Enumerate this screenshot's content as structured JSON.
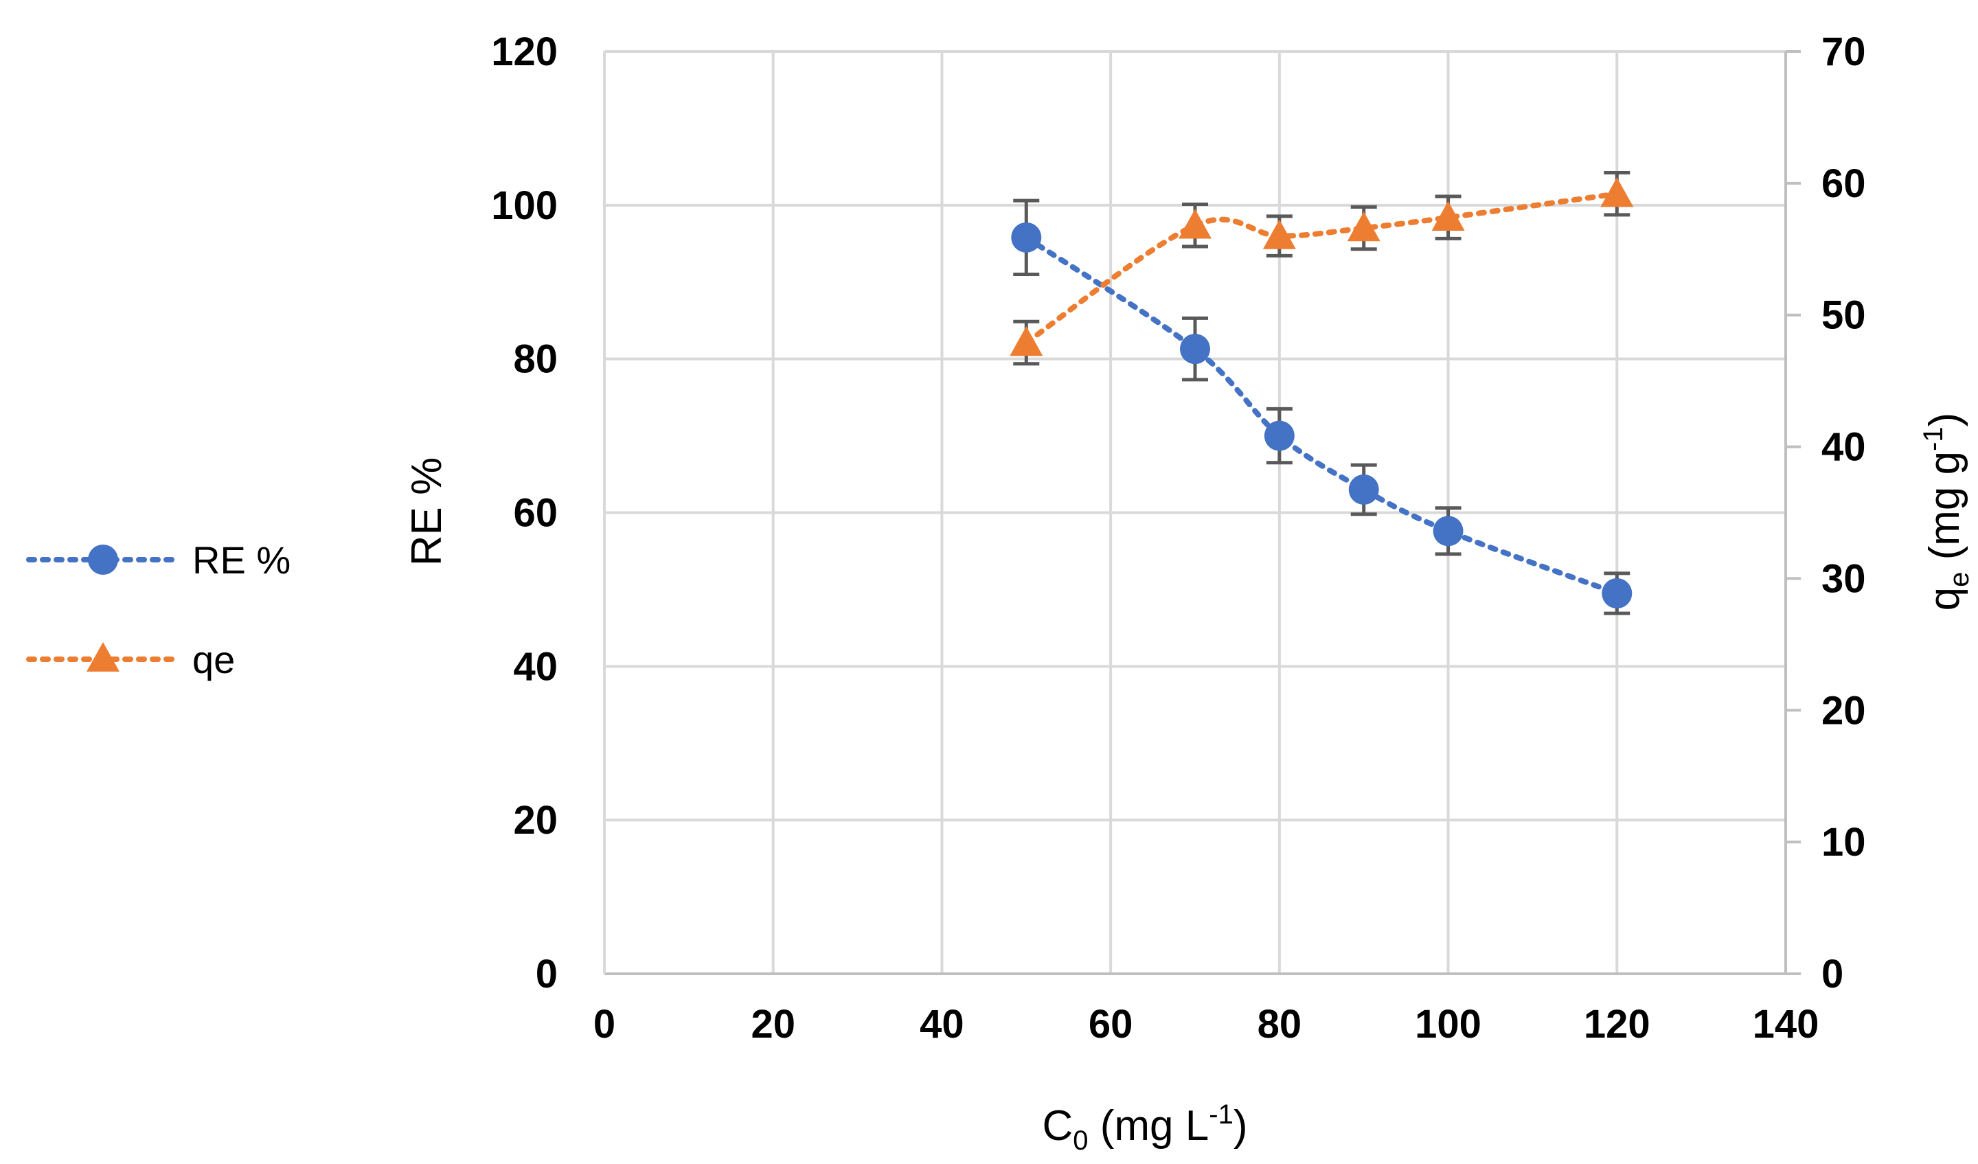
{
  "chart_data": {
    "type": "line",
    "title": "",
    "xlabel": {
      "main": "C",
      "sub": "0",
      "rest": " (mg L",
      "sup": "-1",
      "end": ")"
    },
    "ylabel": "RE %",
    "y2label": {
      "main": "q",
      "sub": "e",
      "rest": " (mg g",
      "sup": "-1",
      "end": ")"
    },
    "xlim": [
      0,
      140
    ],
    "ylim": [
      0,
      120
    ],
    "y2lim": [
      0,
      70
    ],
    "xticks": [
      0,
      20,
      40,
      60,
      80,
      100,
      120,
      140
    ],
    "yticks": [
      0,
      20,
      40,
      60,
      80,
      100,
      120
    ],
    "y2ticks": [
      0,
      10,
      20,
      30,
      40,
      50,
      60,
      70
    ],
    "grid": true,
    "legend_position": "left",
    "series": [
      {
        "name": "RE %",
        "axis": "left",
        "marker": "circle",
        "color": "#4472C4",
        "x": [
          50,
          70,
          80,
          90,
          100,
          120
        ],
        "y": [
          95.8,
          81.3,
          70.0,
          63.0,
          57.6,
          49.5
        ],
        "err": [
          4.8,
          4.0,
          3.5,
          3.2,
          3.0,
          2.6
        ]
      },
      {
        "name": "qe",
        "axis": "right",
        "marker": "triangle",
        "color": "#ED7D31",
        "x": [
          50,
          70,
          80,
          90,
          100,
          120
        ],
        "y": [
          47.9,
          56.8,
          56.0,
          56.6,
          57.4,
          59.2
        ],
        "err": [
          1.6,
          1.6,
          1.5,
          1.6,
          1.6,
          1.6
        ]
      }
    ]
  }
}
